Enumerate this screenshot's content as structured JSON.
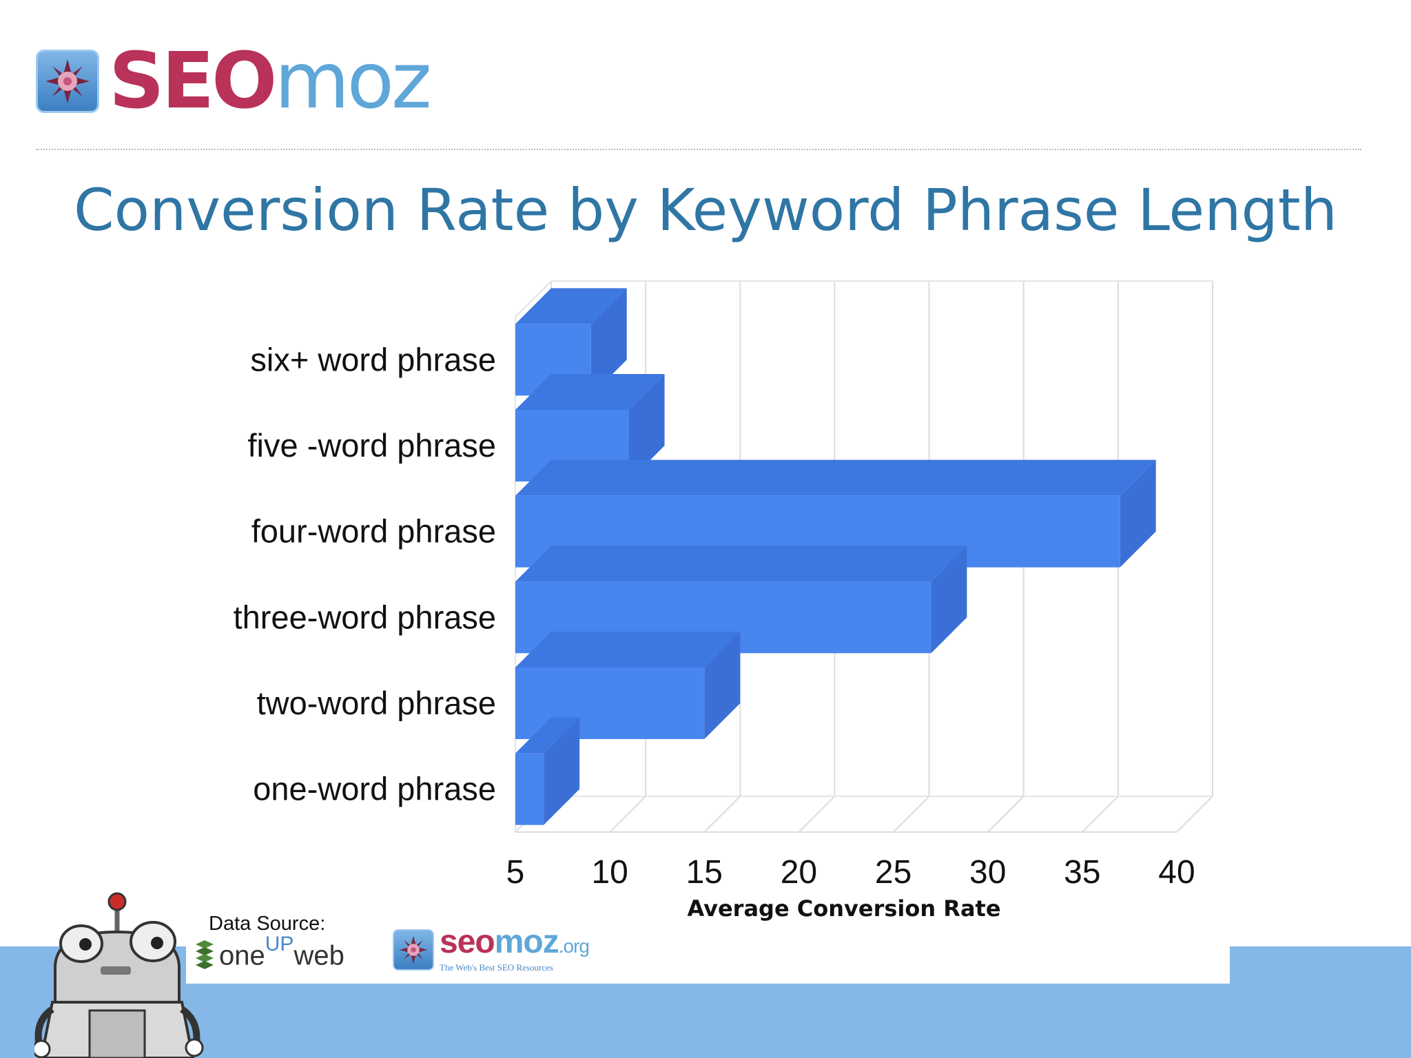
{
  "header": {
    "logo_seo": "SEO",
    "logo_moz": "moz"
  },
  "title": "Conversion Rate by Keyword Phrase Length",
  "chart_data": {
    "type": "bar",
    "orientation": "horizontal",
    "three_d": true,
    "categories": [
      "one-word phrase",
      "two-word phrase",
      "three-word phrase",
      "four-word phrase",
      "five -word phrase",
      "six+ word phrase"
    ],
    "values": [
      6.5,
      15,
      27,
      37,
      11,
      9
    ],
    "xlabel": "Average Conversion Rate",
    "ylabel": "",
    "xlim": [
      5,
      40
    ],
    "xticks": [
      5,
      10,
      15,
      20,
      25,
      30,
      35,
      40
    ],
    "grid": true,
    "bar_color": "#4785ef"
  },
  "footer": {
    "data_source_label": "Data Source:",
    "oneup_pre": "one",
    "oneup_sup": "UP",
    "oneup_post": "web",
    "org_seo": "seo",
    "org_moz": "moz",
    "org_tld": ".org",
    "org_tagline": "The Web's Best SEO Resources",
    "band_color": "#85b8e6"
  },
  "icons": {
    "logo": "sunburst-logo-icon",
    "mascot": "robot-mascot-icon",
    "oneup": "oneupweb-logo-icon"
  }
}
